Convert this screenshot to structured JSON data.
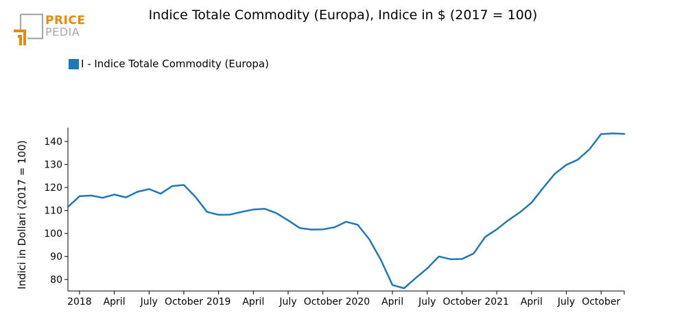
{
  "logo": {
    "word_top": "PRICE",
    "word_bottom": "PEDIA",
    "color_orange": "#e8890c",
    "color_gray": "#a9a9a9"
  },
  "title": "Indice Totale Commodity (Europa), Indice in $ (2017 = 100)",
  "legend": {
    "label": "I - Indice Totale Commodity (Europa)",
    "color": "#1f77b4"
  },
  "chart_data": {
    "type": "line",
    "title": "Indice Totale Commodity (Europa), Indice in $ (2017 = 100)",
    "xlabel": "",
    "ylabel": "Indici in Dollari (2017 = 100)",
    "ylim": [
      75,
      146
    ],
    "yticks": [
      80,
      90,
      100,
      110,
      120,
      130,
      140
    ],
    "x_tick_labels": [
      {
        "date": "2018-01",
        "label": "2018"
      },
      {
        "date": "2018-04",
        "label": "April"
      },
      {
        "date": "2018-07",
        "label": "July"
      },
      {
        "date": "2018-10",
        "label": "October"
      },
      {
        "date": "2019-01",
        "label": "2019"
      },
      {
        "date": "2019-04",
        "label": "April"
      },
      {
        "date": "2019-07",
        "label": "July"
      },
      {
        "date": "2019-10",
        "label": "October"
      },
      {
        "date": "2020-01",
        "label": "2020"
      },
      {
        "date": "2020-04",
        "label": "April"
      },
      {
        "date": "2020-07",
        "label": "July"
      },
      {
        "date": "2020-10",
        "label": "October"
      },
      {
        "date": "2021-01",
        "label": "2021"
      },
      {
        "date": "2021-04",
        "label": "April"
      },
      {
        "date": "2021-07",
        "label": "July"
      },
      {
        "date": "2021-10",
        "label": "October"
      }
    ],
    "grid": false,
    "legend_position": "top-left",
    "series": [
      {
        "name": "I - Indice Totale Commodity (Europa)",
        "color": "#1f77b4",
        "x": [
          "2017-12",
          "2018-01",
          "2018-02",
          "2018-03",
          "2018-04",
          "2018-05",
          "2018-06",
          "2018-07",
          "2018-08",
          "2018-09",
          "2018-10",
          "2018-11",
          "2018-12",
          "2019-01",
          "2019-02",
          "2019-03",
          "2019-04",
          "2019-05",
          "2019-06",
          "2019-07",
          "2019-08",
          "2019-09",
          "2019-10",
          "2019-11",
          "2019-12",
          "2020-01",
          "2020-02",
          "2020-03",
          "2020-04",
          "2020-05",
          "2020-06",
          "2020-07",
          "2020-08",
          "2020-09",
          "2020-10",
          "2020-11",
          "2020-12",
          "2021-01",
          "2021-02",
          "2021-03",
          "2021-04",
          "2021-05",
          "2021-06",
          "2021-07",
          "2021-08",
          "2021-09",
          "2021-10",
          "2021-11",
          "2021-12"
        ],
        "values": [
          111.5,
          116.2,
          116.5,
          115.5,
          116.9,
          115.7,
          118.1,
          119.3,
          117.3,
          120.6,
          121.1,
          115.9,
          109.4,
          108.1,
          108.2,
          109.4,
          110.4,
          110.7,
          108.8,
          105.7,
          102.4,
          101.7,
          101.8,
          102.7,
          105.1,
          103.8,
          97.5,
          88.5,
          77.6,
          76.2,
          80.6,
          84.8,
          90.0,
          88.8,
          88.9,
          91.3,
          98.5,
          101.8,
          105.8,
          109.2,
          113.4,
          119.8,
          125.9,
          129.8,
          132.1,
          136.6,
          143.2,
          143.5,
          143.3
        ]
      }
    ]
  }
}
